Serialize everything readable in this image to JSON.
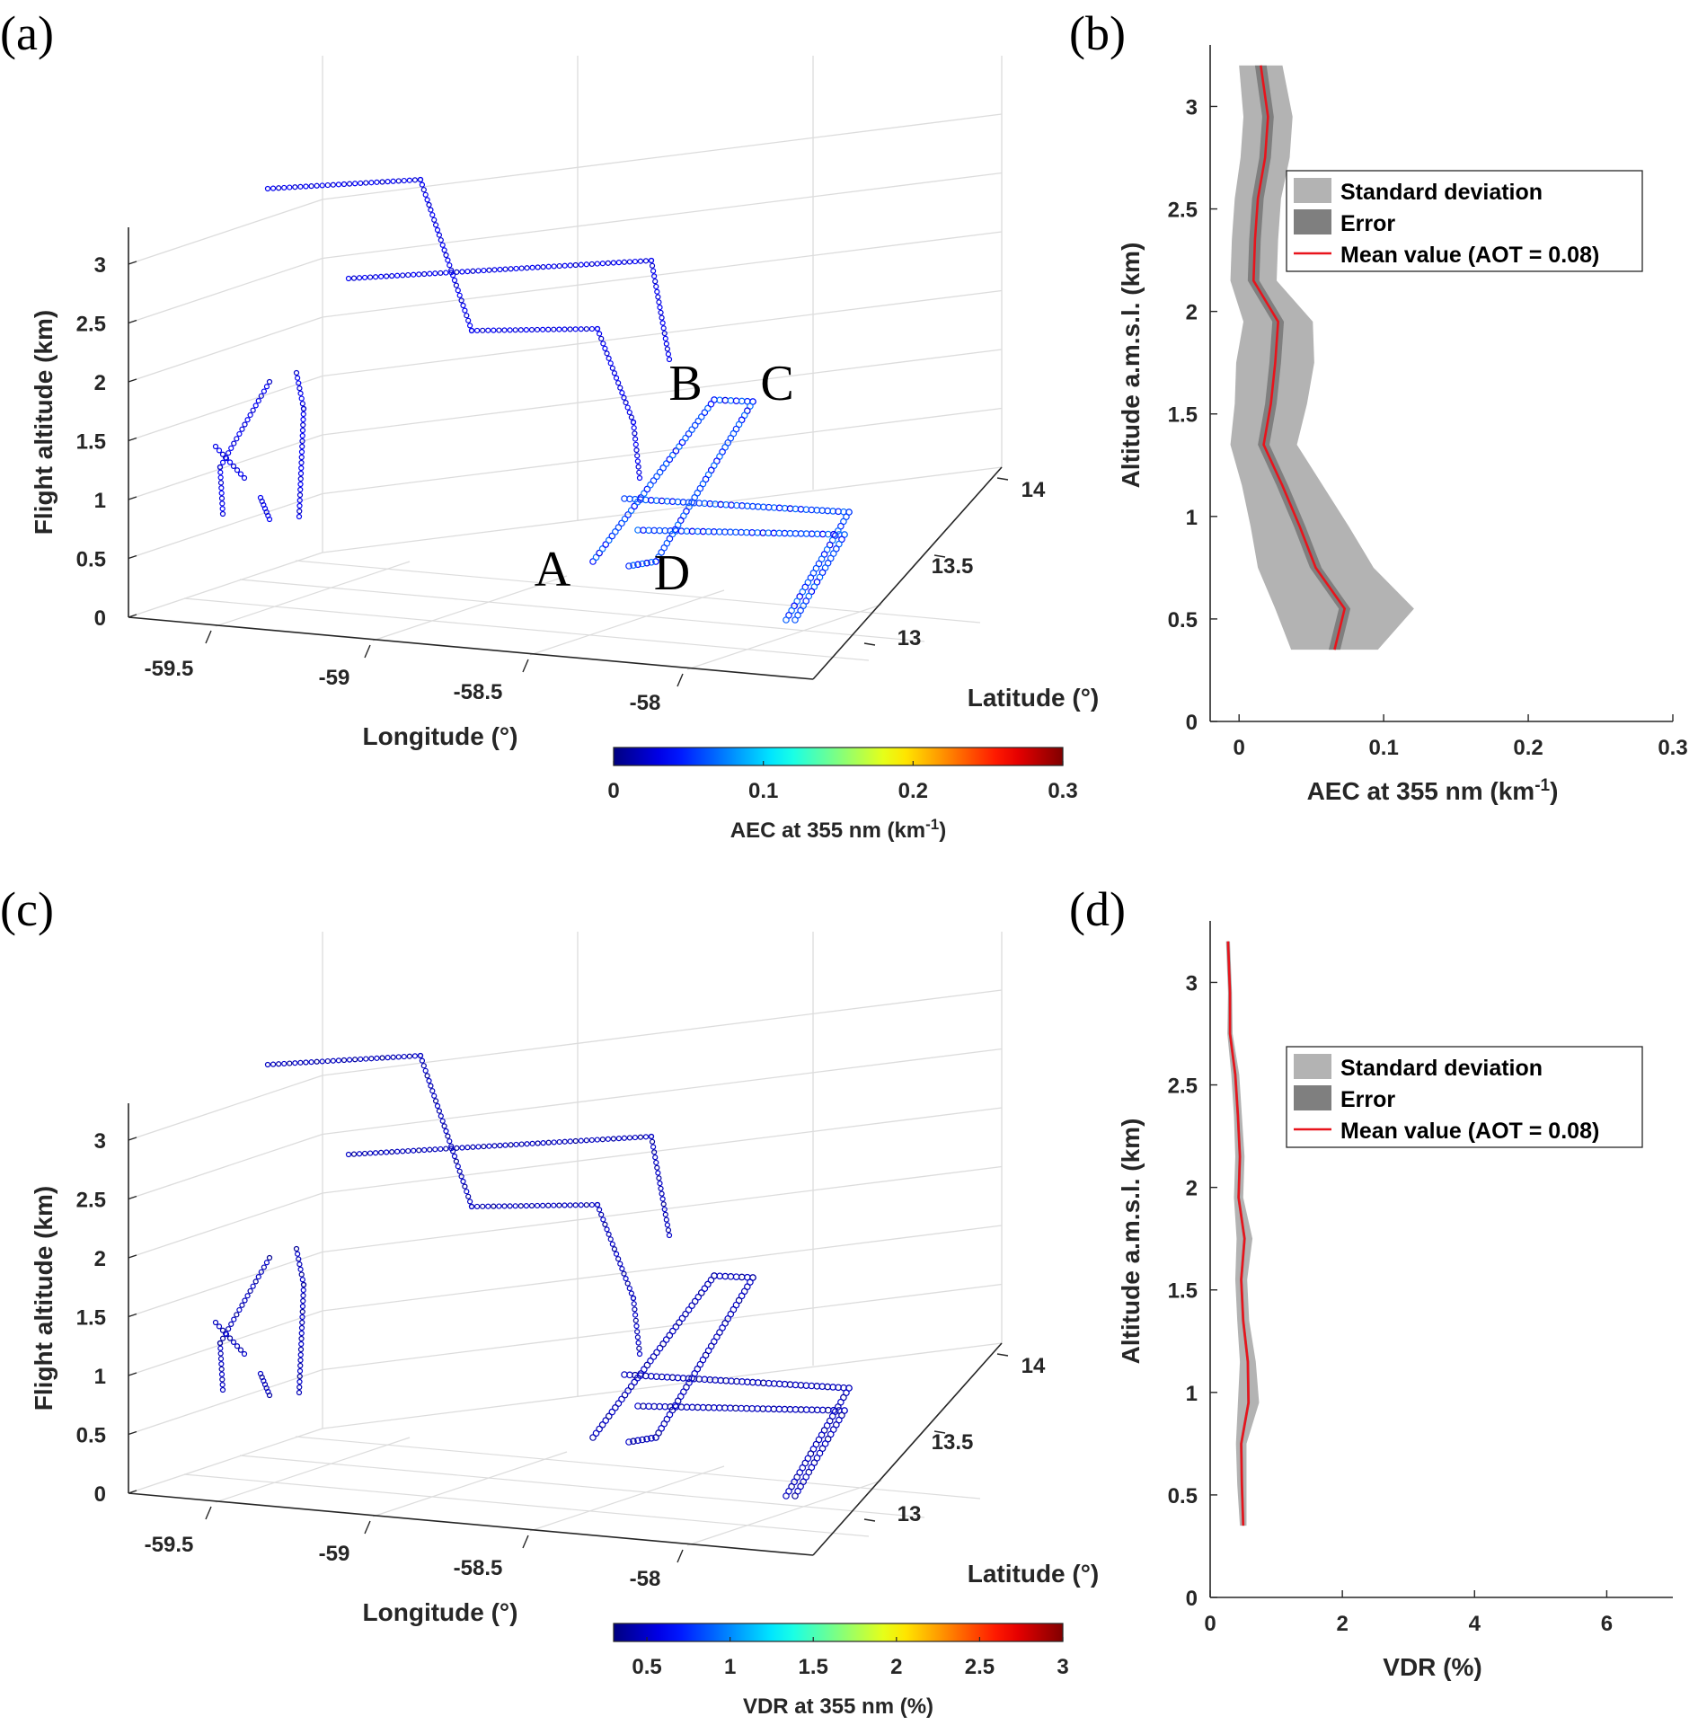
{
  "chart_data": [
    {
      "panel": "(a)",
      "type": "scatter3d",
      "xlabel": "Longitude (°)",
      "ylabel": "Latitude (°)",
      "zlabel": "Flight altitude (km)",
      "x_ticks": [
        "-59.5",
        "-59",
        "-58.5",
        "-58"
      ],
      "y_ticks": [
        "13",
        "13.5",
        "14"
      ],
      "z_ticks": [
        "0",
        "0.5",
        "1",
        "1.5",
        "2",
        "2.5",
        "3"
      ],
      "point_labels": [
        "A",
        "B",
        "C",
        "D"
      ],
      "colorbar": {
        "label": "AEC at 355 nm (km",
        "label_sup": "-1",
        "label_end": ")",
        "ticks": [
          "0",
          "0.1",
          "0.2",
          "0.3"
        ],
        "range": [
          0,
          0.3
        ]
      }
    },
    {
      "panel": "(b)",
      "type": "line",
      "xlabel": "AEC at 355 nm (km",
      "xlabel_sup": "-1",
      "xlabel_end": ")",
      "ylabel": "Altitude a.m.s.l. (km)",
      "xlim": [
        -0.02,
        0.3
      ],
      "ylim": [
        0,
        3.3
      ],
      "x_ticks": [
        "0",
        "0.1",
        "0.2",
        "0.3"
      ],
      "y_ticks": [
        "0",
        "0.5",
        "1",
        "1.5",
        "2",
        "2.5",
        "3"
      ],
      "legend": [
        "Standard deviation",
        "Error",
        "Mean value (AOT = 0.08)"
      ],
      "legend_position": "top-right",
      "altitude": [
        0.35,
        0.55,
        0.75,
        0.95,
        1.15,
        1.35,
        1.55,
        1.75,
        1.95,
        2.15,
        2.35,
        2.55,
        2.75,
        2.95,
        3.2
      ],
      "mean": [
        0.066,
        0.073,
        0.053,
        0.042,
        0.03,
        0.017,
        0.022,
        0.025,
        0.027,
        0.01,
        0.011,
        0.013,
        0.018,
        0.02,
        0.015
      ],
      "std_dev": [
        0.03,
        0.048,
        0.04,
        0.034,
        0.028,
        0.023,
        0.025,
        0.027,
        0.024,
        0.016,
        0.016,
        0.016,
        0.017,
        0.017,
        0.015
      ],
      "error": [
        0.004,
        0.004,
        0.004,
        0.004,
        0.004,
        0.004,
        0.004,
        0.004,
        0.004,
        0.004,
        0.004,
        0.004,
        0.004,
        0.004,
        0.004
      ]
    },
    {
      "panel": "(c)",
      "type": "scatter3d",
      "xlabel": "Longitude (°)",
      "ylabel": "Latitude (°)",
      "zlabel": "Flight altitude (km)",
      "x_ticks": [
        "-59.5",
        "-59",
        "-58.5",
        "-58"
      ],
      "y_ticks": [
        "13",
        "13.5",
        "14"
      ],
      "z_ticks": [
        "0",
        "0.5",
        "1",
        "1.5",
        "2",
        "2.5",
        "3"
      ],
      "colorbar": {
        "label": "VDR at 355 nm (%)",
        "ticks": [
          "0.5",
          "1",
          "1.5",
          "2",
          "2.5",
          "3"
        ],
        "range": [
          0.3,
          3
        ]
      }
    },
    {
      "panel": "(d)",
      "type": "line",
      "xlabel": "VDR (%)",
      "ylabel": "Altitude a.m.s.l. (km)",
      "xlim": [
        0,
        7
      ],
      "ylim": [
        0,
        3.3
      ],
      "x_ticks": [
        "0",
        "2",
        "4",
        "6"
      ],
      "y_ticks": [
        "0",
        "0.5",
        "1",
        "1.5",
        "2",
        "2.5",
        "3"
      ],
      "legend": [
        "Standard deviation",
        "Error",
        "Mean value (AOT = 0.08)"
      ],
      "legend_position": "top-right",
      "altitude": [
        0.35,
        0.55,
        0.75,
        0.95,
        1.15,
        1.35,
        1.55,
        1.75,
        1.95,
        2.15,
        2.35,
        2.55,
        2.75,
        2.95,
        3.2
      ],
      "mean": [
        0.5,
        0.48,
        0.47,
        0.58,
        0.57,
        0.5,
        0.47,
        0.52,
        0.43,
        0.45,
        0.42,
        0.38,
        0.3,
        0.3,
        0.27
      ],
      "std_dev": [
        0.05,
        0.07,
        0.08,
        0.16,
        0.12,
        0.09,
        0.09,
        0.12,
        0.07,
        0.07,
        0.06,
        0.06,
        0.04,
        0.03,
        0.03
      ],
      "error": [
        0.02,
        0.02,
        0.02,
        0.02,
        0.02,
        0.02,
        0.02,
        0.02,
        0.02,
        0.02,
        0.02,
        0.02,
        0.02,
        0.02,
        0.02
      ]
    }
  ]
}
